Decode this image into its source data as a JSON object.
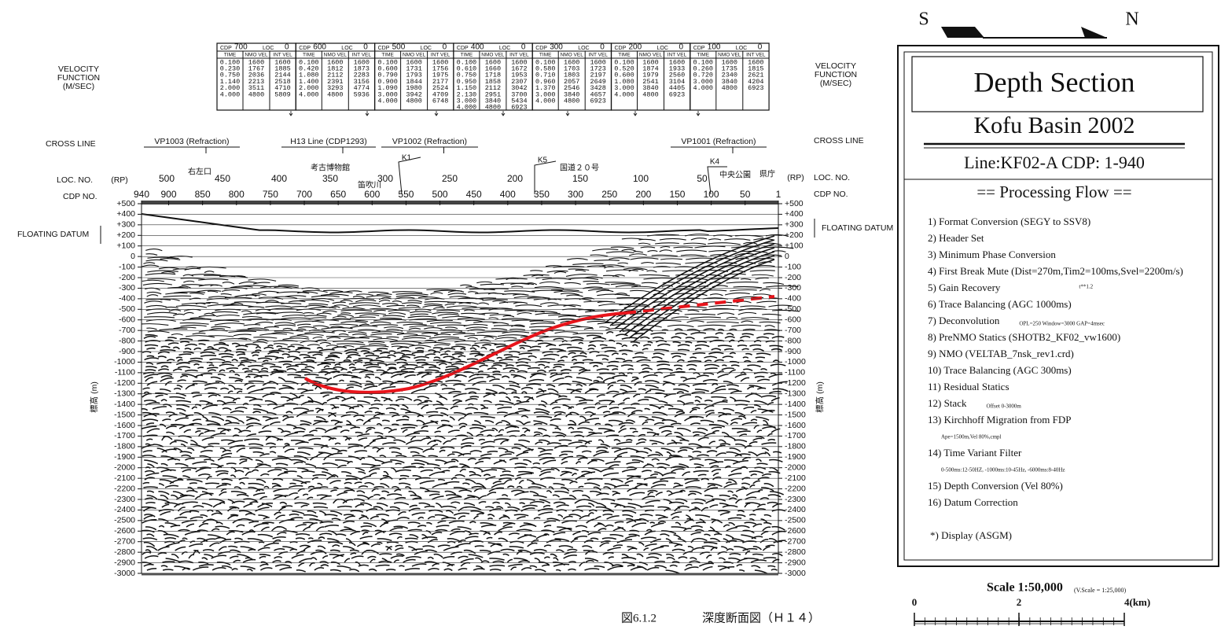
{
  "velocity_function": {
    "left_lines": [
      "VELOCITY",
      "FUNCTION",
      "(M/SEC)"
    ],
    "right_lines": [
      "VELOCITY",
      "FUNCTION",
      "(M/SEC)"
    ]
  },
  "velocity_tables": [
    {
      "cdp_label": "CDP",
      "cdp": "700",
      "loc_label": "LOC",
      "loc": "0",
      "columns": [
        "TIME",
        "NMO VEL",
        "INT VEL"
      ],
      "rows": [
        [
          "0.100",
          "1600",
          "1600"
        ],
        [
          "0.230",
          "1767",
          "1885"
        ],
        [
          "0.750",
          "2036",
          "2144"
        ],
        [
          "1.140",
          "2213",
          "2518"
        ],
        [
          "2.000",
          "3511",
          "4710"
        ],
        [
          "4.000",
          "4800",
          "5809"
        ]
      ]
    },
    {
      "cdp_label": "CDP",
      "cdp": "600",
      "loc_label": "LOC",
      "loc": "0",
      "columns": [
        "TIME",
        "NMO VEL",
        "INT VEL"
      ],
      "rows": [
        [
          "0.100",
          "1600",
          "1600"
        ],
        [
          "0.420",
          "1812",
          "1873"
        ],
        [
          "1.080",
          "2112",
          "2283"
        ],
        [
          "1.400",
          "2391",
          "3156"
        ],
        [
          "2.000",
          "3293",
          "4774"
        ],
        [
          "4.000",
          "4800",
          "5936"
        ]
      ]
    },
    {
      "cdp_label": "CDP",
      "cdp": "500",
      "loc_label": "LOC",
      "loc": "0",
      "columns": [
        "TIME",
        "NMO VEL",
        "INT VEL"
      ],
      "rows": [
        [
          "0.100",
          "1600",
          "1600"
        ],
        [
          "0.600",
          "1731",
          "1756"
        ],
        [
          "0.790",
          "1793",
          "1975"
        ],
        [
          "0.900",
          "1844",
          "2177"
        ],
        [
          "1.090",
          "1980",
          "2524"
        ],
        [
          "3.000",
          "3942",
          "4709"
        ],
        [
          "4.000",
          "4800",
          "6748"
        ]
      ]
    },
    {
      "cdp_label": "CDP",
      "cdp": "400",
      "loc_label": "LOC",
      "loc": "0",
      "columns": [
        "TIME",
        "NMO VEL",
        "INT VEL"
      ],
      "rows": [
        [
          "0.100",
          "1600",
          "1600"
        ],
        [
          "0.610",
          "1660",
          "1672"
        ],
        [
          "0.750",
          "1718",
          "1953"
        ],
        [
          "0.950",
          "1858",
          "2307"
        ],
        [
          "1.150",
          "2112",
          "3042"
        ],
        [
          "2.130",
          "2951",
          "3700"
        ],
        [
          "3.000",
          "3840",
          "5434"
        ],
        [
          "4.000",
          "4800",
          "6923"
        ]
      ]
    },
    {
      "cdp_label": "CDP",
      "cdp": "300",
      "loc_label": "LOC",
      "loc": "0",
      "columns": [
        "TIME",
        "NMO VEL",
        "INT VEL"
      ],
      "rows": [
        [
          "0.100",
          "1600",
          "1600"
        ],
        [
          "0.580",
          "1703",
          "1723"
        ],
        [
          "0.710",
          "1803",
          "2197"
        ],
        [
          "0.960",
          "2057",
          "2649"
        ],
        [
          "1.370",
          "2546",
          "3428"
        ],
        [
          "3.000",
          "3840",
          "4657"
        ],
        [
          "4.000",
          "4800",
          "6923"
        ]
      ]
    },
    {
      "cdp_label": "CDP",
      "cdp": "200",
      "loc_label": "LOC",
      "loc": "0",
      "columns": [
        "TIME",
        "NMO VEL",
        "INT VEL"
      ],
      "rows": [
        [
          "0.100",
          "1600",
          "1600"
        ],
        [
          "0.520",
          "1874",
          "1933"
        ],
        [
          "0.600",
          "1979",
          "2560"
        ],
        [
          "1.080",
          "2541",
          "3104"
        ],
        [
          "3.000",
          "3840",
          "4405"
        ],
        [
          "4.000",
          "4800",
          "6923"
        ]
      ]
    },
    {
      "cdp_label": "CDP",
      "cdp": "100",
      "loc_label": "LOC",
      "loc": "0",
      "columns": [
        "TIME",
        "NMO VEL",
        "INT VEL"
      ],
      "rows": [
        [
          "0.100",
          "1600",
          "1600"
        ],
        [
          "0.260",
          "1735",
          "1815"
        ],
        [
          "0.720",
          "2340",
          "2621"
        ],
        [
          "3.000",
          "3840",
          "4204"
        ],
        [
          "4.000",
          "4800",
          "6923"
        ]
      ]
    }
  ],
  "cross_line": {
    "left": "CROSS LINE",
    "right": "CROSS LINE",
    "lines": [
      "VP1003 (Refraction)",
      "H13 Line (CDP1293)",
      "VP1002 (Refraction)",
      "VP1001 (Refraction)"
    ]
  },
  "stations": [
    "右左口",
    "考古博物館",
    "笛吹川",
    "K1",
    "K5",
    "国道２０号",
    "K4",
    "中央公園",
    "県庁"
  ],
  "loc_axis": {
    "label_left": "LOC. NO.",
    "label_right": "LOC. NO.",
    "rp_left": "(RP)",
    "rp_right": "(RP)",
    "ticks": [
      "500",
      "450",
      "400",
      "350",
      "300",
      "250",
      "200",
      "150",
      "100",
      "50"
    ]
  },
  "cdp_axis": {
    "label_left": "CDP NO.",
    "label_right": "CDP NO.",
    "ticks": [
      "940",
      "900",
      "850",
      "800",
      "750",
      "700",
      "650",
      "600",
      "550",
      "500",
      "450",
      "400",
      "350",
      "300",
      "250",
      "200",
      "150",
      "100",
      "50",
      "1"
    ]
  },
  "depth_axis": {
    "title_left": "標高 (m)",
    "title_right": "標高 (m)",
    "datum_left": "FLOATING DATUM",
    "datum_right": "FLOATING DATUM",
    "ticks": [
      "+500",
      "+400",
      "+300",
      "+200",
      "+100",
      "0",
      "-100",
      "-200",
      "-300",
      "-400",
      "-500",
      "-600",
      "-700",
      "-800",
      "-900",
      "-1000",
      "-1100",
      "-1200",
      "-1300",
      "-1400",
      "-1500",
      "-1600",
      "-1700",
      "-1800",
      "-1900",
      "-2000",
      "-2100",
      "-2200",
      "-2300",
      "-2400",
      "-2500",
      "-2600",
      "-2700",
      "-2800",
      "-2900",
      "-3000"
    ]
  },
  "orientation": {
    "south": "S",
    "north": "N"
  },
  "panel": {
    "title": "Depth Section",
    "basin": "Kofu Basin 2002",
    "line": "Line:KF02-A  CDP: 1-940",
    "flow_title": "== Processing Flow ==",
    "steps": [
      {
        "text": "1) Format Conversion (SEGY to SSV8)"
      },
      {
        "text": "2) Header Set"
      },
      {
        "text": "3) Minimum Phase Conversion"
      },
      {
        "text": "4) First Break Mute (Dist=270m,Tim2=100ms,Svel=2200m/s)"
      },
      {
        "text": "5) Gain Recovery",
        "note": "t**1.2"
      },
      {
        "text": "6) Trace Balancing (AGC 1000ms)"
      },
      {
        "text": "7) Deconvolution",
        "note": "OPL=250 Window=3000 GAP=4msec"
      },
      {
        "text": "8) PreNMO Statics (SHOTB2_KF02_vw1600)"
      },
      {
        "text": "9) NMO (VELTAB_7nsk_rev1.crd)"
      },
      {
        "text": "10) Trace Balancing (AGC 300ms)"
      },
      {
        "text": "11) Residual Statics"
      },
      {
        "text": "12) Stack",
        "note": "Offset 0-3000m"
      },
      {
        "text": "13) Kirchhoff Migration from FDP",
        "subline": "Ape=1500m,Vel 80%,cmpl"
      },
      {
        "text": "14) Time Variant Filter",
        "subline": "0-500ms:12-50HZ, -1000ms:10-45Hz, -6000ms:8-40Hz"
      },
      {
        "text": "15) Depth Conversion (Vel 80%)"
      },
      {
        "text": "16) Datum Correction"
      }
    ],
    "display": "*) Display (ASGM)"
  },
  "scale": {
    "label": "Scale 1:50,000",
    "vertical": "(V.Scale = 1:25,000)",
    "ticks": [
      "0",
      "2",
      "4(km)"
    ]
  },
  "caption": {
    "figure": "図6.1.2",
    "title": "深度断面図（Ｈ１４）"
  }
}
